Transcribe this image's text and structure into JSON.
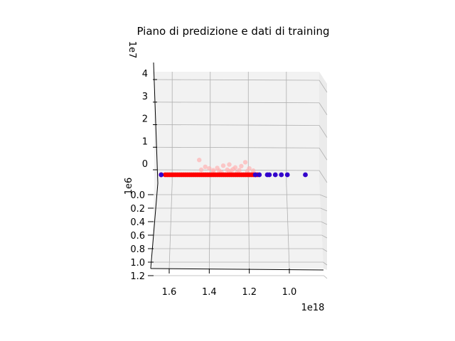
{
  "chart_data": {
    "type": "scatter",
    "projection": "3d",
    "title": "Piano di predizione e dati di training",
    "x_axis": {
      "offset_label": "1e18",
      "ticks": [
        1.6,
        1.4,
        1.2,
        1.0
      ],
      "tick_labels": [
        "1.6",
        "1.4",
        "1.2",
        "1.0"
      ],
      "lim": [
        1.7,
        0.85
      ],
      "inverted": true
    },
    "y_axis": {
      "offset_label": "1e6",
      "ticks": [
        0.0,
        0.2,
        0.4,
        0.6,
        0.8,
        1.0,
        1.2
      ],
      "tick_labels": [
        "0.0",
        "0.2",
        "0.4",
        "0.6",
        "0.8",
        "1.0",
        "1.2"
      ],
      "lim": [
        0.0,
        1.2
      ]
    },
    "z_axis": {
      "offset_label": "1e7",
      "ticks": [
        0,
        1,
        2,
        3,
        4
      ],
      "tick_labels": [
        "0",
        "1",
        "2",
        "3",
        "4"
      ],
      "lim": [
        -0.3,
        4.3
      ]
    },
    "grid": true,
    "series": [
      {
        "marker": "circle",
        "color": "#ff0000",
        "x": [
          1.64,
          1.62,
          1.61,
          1.6,
          1.59,
          1.58,
          1.57,
          1.56,
          1.55,
          1.54,
          1.53,
          1.52,
          1.51,
          1.5,
          1.49,
          1.48,
          1.47,
          1.46,
          1.45,
          1.44,
          1.43,
          1.42,
          1.41,
          1.4,
          1.39,
          1.38,
          1.37,
          1.36,
          1.35,
          1.34,
          1.33,
          1.32,
          1.31,
          1.3,
          1.29,
          1.28,
          1.27,
          1.26,
          1.25,
          1.24,
          1.23,
          1.22,
          1.21,
          1.2,
          1.19,
          1.18,
          1.17,
          1.16
        ],
        "z": [
          0,
          0,
          0,
          0,
          0,
          0,
          0,
          0,
          0,
          0,
          0,
          0,
          0,
          0,
          0,
          0,
          0,
          0,
          0,
          0,
          0,
          0,
          0,
          0,
          0,
          0,
          0,
          0,
          0,
          0,
          0,
          0,
          0,
          0,
          0,
          0,
          0,
          0,
          0,
          0,
          0,
          0,
          0,
          0,
          0,
          0,
          0,
          0
        ]
      },
      {
        "marker": "circle",
        "color": "#3300cc",
        "x": [
          1.64,
          1.17,
          1.15,
          1.11,
          1.1,
          1.07,
          1.04,
          1.01,
          0.92
        ],
        "z": [
          0,
          0,
          0,
          0,
          0,
          0,
          0,
          0,
          0
        ]
      },
      {
        "marker": "circle",
        "color": "#ffb3b3",
        "x": [
          1.45,
          1.42,
          1.4,
          1.38,
          1.36,
          1.35,
          1.33,
          1.31,
          1.3,
          1.28,
          1.27,
          1.25,
          1.22,
          1.2,
          1.18,
          1.44,
          1.38,
          1.34,
          1.29,
          1.26,
          1.21,
          1.3,
          1.24
        ],
        "z": [
          0.65,
          0.35,
          0.28,
          0.2,
          0.3,
          0.18,
          0.4,
          0.22,
          0.15,
          0.25,
          0.32,
          0.2,
          0.55,
          0.28,
          0.18,
          0.22,
          0.15,
          0.12,
          0.18,
          0.1,
          0.16,
          0.45,
          0.38
        ]
      }
    ]
  }
}
